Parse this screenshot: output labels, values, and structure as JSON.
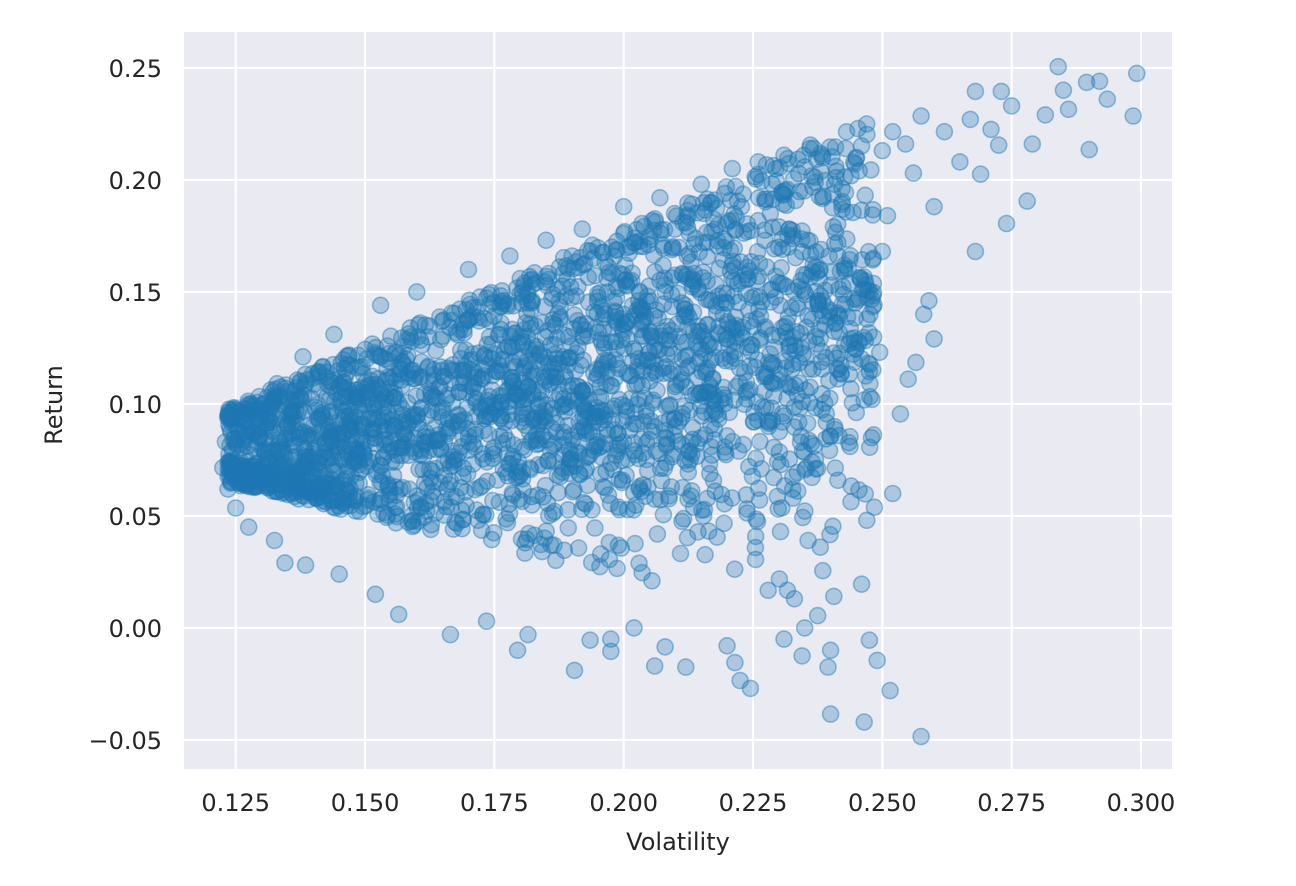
{
  "chart_data": {
    "type": "scatter",
    "title": "",
    "xlabel": "Volatility",
    "ylabel": "Return",
    "xlim": [
      0.115,
      0.306
    ],
    "ylim": [
      -0.063,
      0.266
    ],
    "x_ticks": [
      0.125,
      0.15,
      0.175,
      0.2,
      0.225,
      0.25,
      0.275,
      0.3
    ],
    "x_tick_labels": [
      "0.125",
      "0.150",
      "0.175",
      "0.200",
      "0.225",
      "0.250",
      "0.275",
      "0.300"
    ],
    "y_ticks": [
      -0.05,
      0.0,
      0.05,
      0.1,
      0.15,
      0.2,
      0.25
    ],
    "y_tick_labels": [
      "−0.05",
      "0.00",
      "0.05",
      "0.10",
      "0.15",
      "0.20",
      "0.25"
    ],
    "grid": true,
    "background_color": "#eaeaf2",
    "marker_color": "#1f77b4",
    "marker_alpha": 0.3,
    "sampled_points": [
      [
        0.2992,
        0.2475
      ],
      [
        0.2985,
        0.2285
      ],
      [
        0.2935,
        0.236
      ],
      [
        0.292,
        0.244
      ],
      [
        0.29,
        0.2135
      ],
      [
        0.2895,
        0.2435
      ],
      [
        0.286,
        0.2315
      ],
      [
        0.285,
        0.24
      ],
      [
        0.284,
        0.2505
      ],
      [
        0.2815,
        0.229
      ],
      [
        0.279,
        0.216
      ],
      [
        0.278,
        0.1905
      ],
      [
        0.275,
        0.233
      ],
      [
        0.274,
        0.1805
      ],
      [
        0.273,
        0.2395
      ],
      [
        0.2725,
        0.2155
      ],
      [
        0.271,
        0.2225
      ],
      [
        0.268,
        0.2395
      ],
      [
        0.269,
        0.2025
      ],
      [
        0.268,
        0.168
      ],
      [
        0.267,
        0.227
      ],
      [
        0.265,
        0.208
      ],
      [
        0.262,
        0.2215
      ],
      [
        0.26,
        0.188
      ],
      [
        0.259,
        0.146
      ],
      [
        0.26,
        0.129
      ],
      [
        0.2575,
        0.2285
      ],
      [
        0.258,
        0.14
      ],
      [
        0.2565,
        0.1185
      ],
      [
        0.255,
        0.111
      ],
      [
        0.2535,
        0.0955
      ],
      [
        0.252,
        0.2215
      ],
      [
        0.251,
        0.184
      ],
      [
        0.25,
        0.168
      ],
      [
        0.2495,
        0.123
      ],
      [
        0.248,
        0.102
      ],
      [
        0.247,
        0.048
      ],
      [
        0.246,
        0.0195
      ],
      [
        0.2455,
        0.0615
      ],
      [
        0.252,
        0.06
      ],
      [
        0.2475,
        -0.0055
      ],
      [
        0.249,
        -0.0145
      ],
      [
        0.2515,
        -0.028
      ],
      [
        0.2575,
        -0.0485
      ],
      [
        0.2465,
        -0.042
      ],
      [
        0.24,
        -0.0385
      ],
      [
        0.2395,
        -0.0175
      ],
      [
        0.24,
        -0.01
      ],
      [
        0.2375,
        0.0055
      ],
      [
        0.2385,
        0.0255
      ],
      [
        0.238,
        0.036
      ],
      [
        0.2345,
        -0.0125
      ],
      [
        0.235,
        0.0
      ],
      [
        0.233,
        0.013
      ],
      [
        0.231,
        -0.005
      ],
      [
        0.2245,
        -0.027
      ],
      [
        0.2225,
        -0.0235
      ],
      [
        0.2215,
        -0.0155
      ],
      [
        0.22,
        -0.008
      ],
      [
        0.212,
        -0.0175
      ],
      [
        0.208,
        -0.0085
      ],
      [
        0.206,
        -0.017
      ],
      [
        0.202,
        0.0
      ],
      [
        0.1975,
        -0.005
      ],
      [
        0.1975,
        -0.0105
      ],
      [
        0.1935,
        -0.0055
      ],
      [
        0.1905,
        -0.019
      ],
      [
        0.1815,
        -0.003
      ],
      [
        0.1795,
        -0.01
      ],
      [
        0.1665,
        -0.003
      ],
      [
        0.1735,
        0.003
      ],
      [
        0.1565,
        0.006
      ],
      [
        0.152,
        0.015
      ],
      [
        0.145,
        0.024
      ],
      [
        0.1385,
        0.028
      ],
      [
        0.1345,
        0.029
      ],
      [
        0.1325,
        0.039
      ],
      [
        0.1275,
        0.045
      ],
      [
        0.125,
        0.0535
      ],
      [
        0.1235,
        0.062
      ],
      [
        0.1225,
        0.0715
      ],
      [
        0.123,
        0.083
      ],
      [
        0.124,
        0.094
      ],
      [
        0.128,
        0.1
      ],
      [
        0.133,
        0.109
      ],
      [
        0.138,
        0.121
      ],
      [
        0.144,
        0.131
      ],
      [
        0.153,
        0.144
      ],
      [
        0.16,
        0.15
      ],
      [
        0.17,
        0.16
      ],
      [
        0.178,
        0.166
      ],
      [
        0.185,
        0.173
      ],
      [
        0.192,
        0.178
      ],
      [
        0.2,
        0.188
      ],
      [
        0.207,
        0.192
      ],
      [
        0.215,
        0.198
      ],
      [
        0.221,
        0.205
      ],
      [
        0.226,
        0.208
      ],
      [
        0.231,
        0.211
      ],
      [
        0.236,
        0.214
      ],
      [
        0.241,
        0.206
      ],
      [
        0.245,
        0.21
      ],
      [
        0.25,
        0.213
      ],
      [
        0.2545,
        0.216
      ],
      [
        0.256,
        0.203
      ]
    ]
  }
}
